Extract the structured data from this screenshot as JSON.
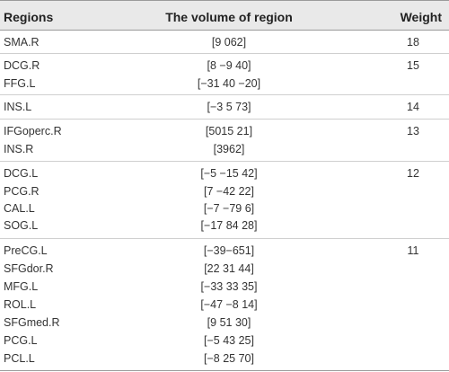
{
  "headers": {
    "regions": "Regions",
    "volume": "The volume of region",
    "weight": "Weight"
  },
  "groups": [
    {
      "weight": "18",
      "rows": [
        {
          "region": "SMA.R",
          "volume": "[9 062]"
        }
      ]
    },
    {
      "weight": "15",
      "rows": [
        {
          "region": "DCG.R",
          "volume": "[8 −9 40]"
        },
        {
          "region": "FFG.L",
          "volume": "[−31 40 −20]"
        }
      ]
    },
    {
      "weight": "14",
      "rows": [
        {
          "region": "INS.L",
          "volume": "[−3 5 73]"
        }
      ]
    },
    {
      "weight": "13",
      "rows": [
        {
          "region": "IFGoperc.R",
          "volume": "[5015 21]"
        },
        {
          "region": "INS.R",
          "volume": "[3962]"
        }
      ]
    },
    {
      "weight": "12",
      "rows": [
        {
          "region": "DCG.L",
          "volume": "[−5 −15 42]"
        },
        {
          "region": "PCG.R",
          "volume": "[7 −42 22]"
        },
        {
          "region": "CAL.L",
          "volume": "[−7 −79 6]"
        },
        {
          "region": "SOG.L",
          "volume": "[−17 84 28]"
        }
      ]
    },
    {
      "weight": "11",
      "rows": [
        {
          "region": "PreCG.L",
          "volume": "[−39−651]"
        },
        {
          "region": "SFGdor.R",
          "volume": "[22 31 44]"
        },
        {
          "region": "MFG.L",
          "volume": "[−33 33 35]"
        },
        {
          "region": "ROL.L",
          "volume": "[−47 −8 14]"
        },
        {
          "region": "SFGmed.R",
          "volume": "[9 51 30]"
        },
        {
          "region": "PCG.L",
          "volume": "[−5 43 25]"
        },
        {
          "region": "PCL.L",
          "volume": "[−8 25 70]"
        }
      ]
    }
  ]
}
